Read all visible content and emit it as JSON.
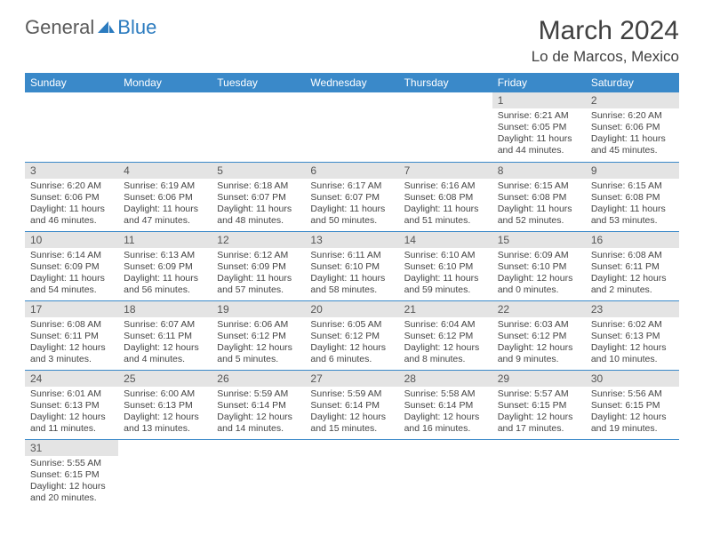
{
  "brand": {
    "part1": "General",
    "part2": "Blue"
  },
  "title": "March 2024",
  "location": "Lo de Marcos, Mexico",
  "colors": {
    "header_bg": "#3a89c9",
    "header_fg": "#ffffff",
    "daynum_bg": "#e4e4e4",
    "row_border": "#3a89c9",
    "text": "#444444",
    "brand_blue": "#2b7bbf",
    "brand_gray": "#5a5a5a"
  },
  "weekdays": [
    "Sunday",
    "Monday",
    "Tuesday",
    "Wednesday",
    "Thursday",
    "Friday",
    "Saturday"
  ],
  "days": {
    "1": {
      "sunrise": "6:21 AM",
      "sunset": "6:05 PM",
      "daylight": "11 hours and 44 minutes."
    },
    "2": {
      "sunrise": "6:20 AM",
      "sunset": "6:06 PM",
      "daylight": "11 hours and 45 minutes."
    },
    "3": {
      "sunrise": "6:20 AM",
      "sunset": "6:06 PM",
      "daylight": "11 hours and 46 minutes."
    },
    "4": {
      "sunrise": "6:19 AM",
      "sunset": "6:06 PM",
      "daylight": "11 hours and 47 minutes."
    },
    "5": {
      "sunrise": "6:18 AM",
      "sunset": "6:07 PM",
      "daylight": "11 hours and 48 minutes."
    },
    "6": {
      "sunrise": "6:17 AM",
      "sunset": "6:07 PM",
      "daylight": "11 hours and 50 minutes."
    },
    "7": {
      "sunrise": "6:16 AM",
      "sunset": "6:08 PM",
      "daylight": "11 hours and 51 minutes."
    },
    "8": {
      "sunrise": "6:15 AM",
      "sunset": "6:08 PM",
      "daylight": "11 hours and 52 minutes."
    },
    "9": {
      "sunrise": "6:15 AM",
      "sunset": "6:08 PM",
      "daylight": "11 hours and 53 minutes."
    },
    "10": {
      "sunrise": "6:14 AM",
      "sunset": "6:09 PM",
      "daylight": "11 hours and 54 minutes."
    },
    "11": {
      "sunrise": "6:13 AM",
      "sunset": "6:09 PM",
      "daylight": "11 hours and 56 minutes."
    },
    "12": {
      "sunrise": "6:12 AM",
      "sunset": "6:09 PM",
      "daylight": "11 hours and 57 minutes."
    },
    "13": {
      "sunrise": "6:11 AM",
      "sunset": "6:10 PM",
      "daylight": "11 hours and 58 minutes."
    },
    "14": {
      "sunrise": "6:10 AM",
      "sunset": "6:10 PM",
      "daylight": "11 hours and 59 minutes."
    },
    "15": {
      "sunrise": "6:09 AM",
      "sunset": "6:10 PM",
      "daylight": "12 hours and 0 minutes."
    },
    "16": {
      "sunrise": "6:08 AM",
      "sunset": "6:11 PM",
      "daylight": "12 hours and 2 minutes."
    },
    "17": {
      "sunrise": "6:08 AM",
      "sunset": "6:11 PM",
      "daylight": "12 hours and 3 minutes."
    },
    "18": {
      "sunrise": "6:07 AM",
      "sunset": "6:11 PM",
      "daylight": "12 hours and 4 minutes."
    },
    "19": {
      "sunrise": "6:06 AM",
      "sunset": "6:12 PM",
      "daylight": "12 hours and 5 minutes."
    },
    "20": {
      "sunrise": "6:05 AM",
      "sunset": "6:12 PM",
      "daylight": "12 hours and 6 minutes."
    },
    "21": {
      "sunrise": "6:04 AM",
      "sunset": "6:12 PM",
      "daylight": "12 hours and 8 minutes."
    },
    "22": {
      "sunrise": "6:03 AM",
      "sunset": "6:12 PM",
      "daylight": "12 hours and 9 minutes."
    },
    "23": {
      "sunrise": "6:02 AM",
      "sunset": "6:13 PM",
      "daylight": "12 hours and 10 minutes."
    },
    "24": {
      "sunrise": "6:01 AM",
      "sunset": "6:13 PM",
      "daylight": "12 hours and 11 minutes."
    },
    "25": {
      "sunrise": "6:00 AM",
      "sunset": "6:13 PM",
      "daylight": "12 hours and 13 minutes."
    },
    "26": {
      "sunrise": "5:59 AM",
      "sunset": "6:14 PM",
      "daylight": "12 hours and 14 minutes."
    },
    "27": {
      "sunrise": "5:59 AM",
      "sunset": "6:14 PM",
      "daylight": "12 hours and 15 minutes."
    },
    "28": {
      "sunrise": "5:58 AM",
      "sunset": "6:14 PM",
      "daylight": "12 hours and 16 minutes."
    },
    "29": {
      "sunrise": "5:57 AM",
      "sunset": "6:15 PM",
      "daylight": "12 hours and 17 minutes."
    },
    "30": {
      "sunrise": "5:56 AM",
      "sunset": "6:15 PM",
      "daylight": "12 hours and 19 minutes."
    },
    "31": {
      "sunrise": "5:55 AM",
      "sunset": "6:15 PM",
      "daylight": "12 hours and 20 minutes."
    }
  },
  "grid": [
    [
      null,
      null,
      null,
      null,
      null,
      1,
      2
    ],
    [
      3,
      4,
      5,
      6,
      7,
      8,
      9
    ],
    [
      10,
      11,
      12,
      13,
      14,
      15,
      16
    ],
    [
      17,
      18,
      19,
      20,
      21,
      22,
      23
    ],
    [
      24,
      25,
      26,
      27,
      28,
      29,
      30
    ],
    [
      31,
      null,
      null,
      null,
      null,
      null,
      null
    ]
  ],
  "labels": {
    "sunrise": "Sunrise:",
    "sunset": "Sunset:",
    "daylight": "Daylight:"
  }
}
